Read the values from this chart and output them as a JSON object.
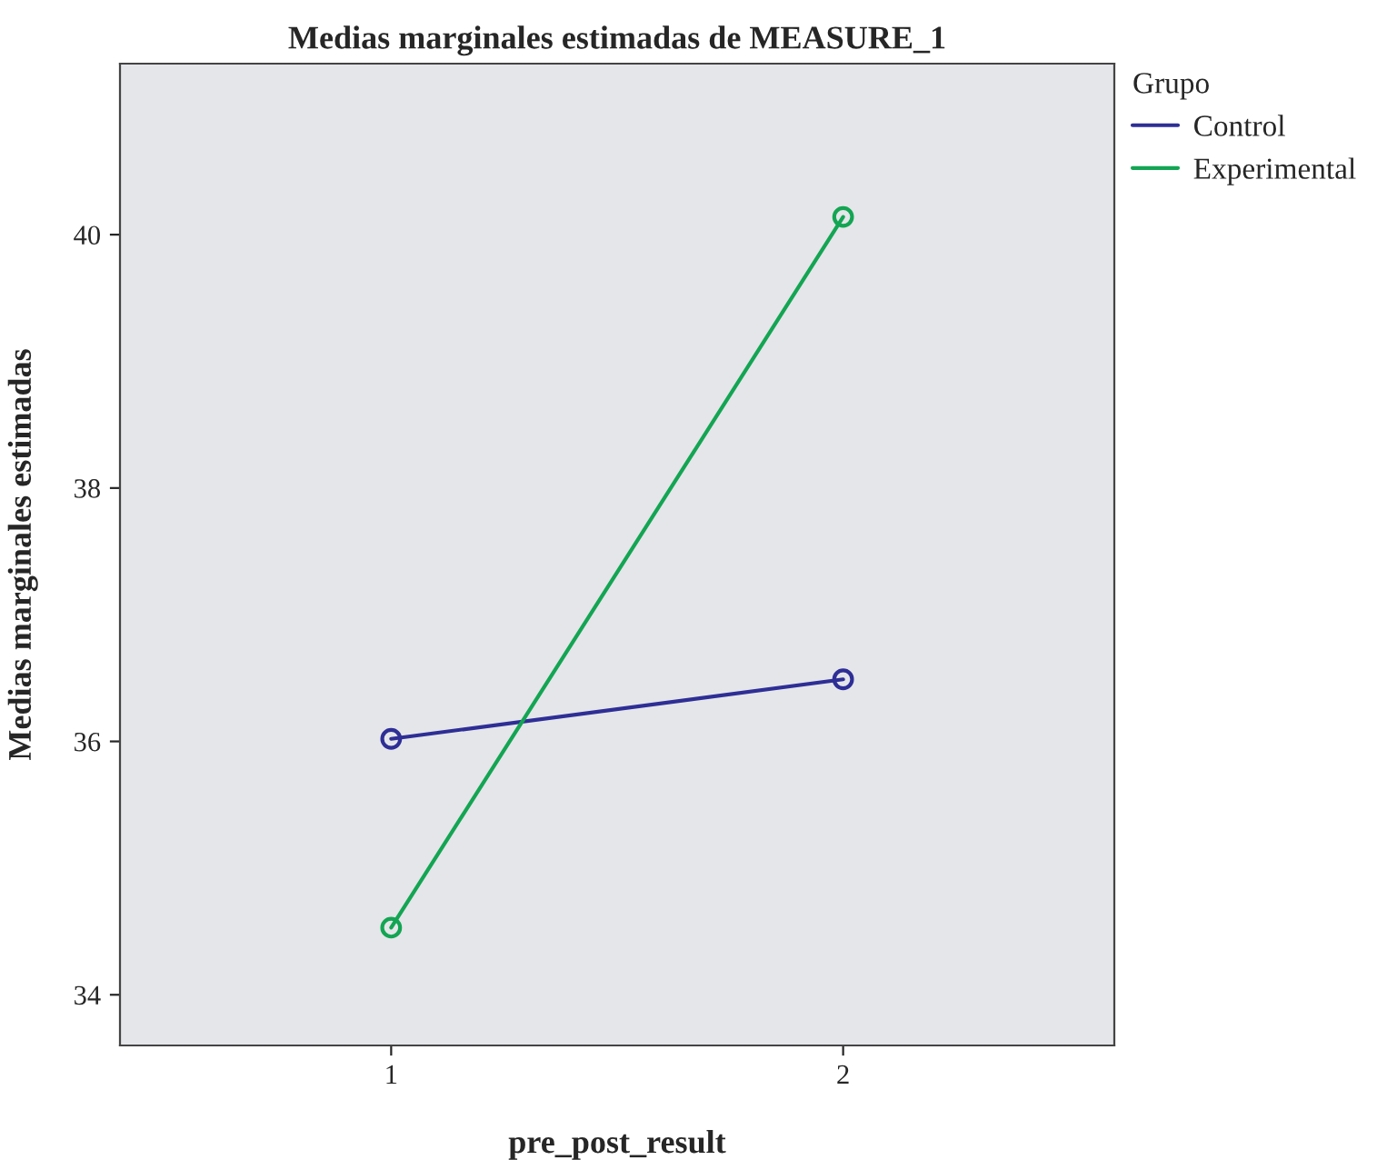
{
  "chart_data": {
    "type": "line",
    "title": "Medias marginales estimadas de MEASURE_1",
    "xlabel": "pre_post_result",
    "ylabel": "Medias marginales estimadas",
    "legend_title": "Grupo",
    "x": [
      1,
      2
    ],
    "series": [
      {
        "name": "Control",
        "color": "#2e2e96",
        "values": [
          36.02,
          36.49
        ]
      },
      {
        "name": "Experimental",
        "color": "#13a553",
        "values": [
          34.53,
          40.14
        ]
      }
    ],
    "xlim": [
      0.4,
      2.6
    ],
    "xticks": [
      1,
      2
    ],
    "ylim": [
      33.6,
      41.35
    ],
    "yticks": [
      34,
      36,
      38,
      40
    ],
    "grid": false,
    "legend": "top right",
    "marker": "circle",
    "line_style": "solid"
  }
}
